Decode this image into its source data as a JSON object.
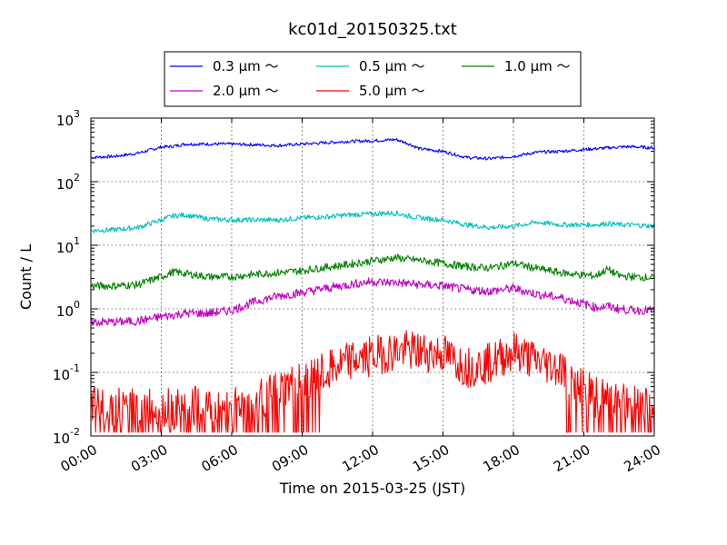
{
  "chart_data": {
    "type": "line",
    "title": "kc01d_20150325.txt",
    "xlabel": "Time on 2015-03-25 (JST)",
    "ylabel": "Count / L",
    "yscale": "log",
    "ylim": [
      0.01,
      1000
    ],
    "xlim": [
      "00:00",
      "24:00"
    ],
    "x_unit": "hour",
    "x": [
      0,
      1,
      2,
      3,
      3.5,
      4,
      5,
      6,
      7,
      8,
      9,
      10,
      11,
      12,
      12.5,
      13,
      13.5,
      14,
      15,
      16,
      17,
      18,
      19,
      20,
      21,
      21.5,
      22,
      22.5,
      23,
      24
    ],
    "x_tick_labels": [
      "00:00",
      "03:00",
      "06:00",
      "09:00",
      "12:00",
      "15:00",
      "18:00",
      "21:00",
      "24:00"
    ],
    "y_tick_labels": [
      {
        "base": "10",
        "exp": "-2"
      },
      {
        "base": "10",
        "exp": "-1"
      },
      {
        "base": "10",
        "exp": "0"
      },
      {
        "base": "10",
        "exp": "1"
      },
      {
        "base": "10",
        "exp": "2"
      },
      {
        "base": "10",
        "exp": "3"
      }
    ],
    "grid": true,
    "legend_position": "top-center",
    "series": [
      {
        "name": "0.3 μm ～",
        "color": "#0000ff",
        "values": [
          240,
          250,
          280,
          350,
          360,
          390,
          390,
          390,
          380,
          370,
          390,
          410,
          430,
          440,
          450,
          460,
          400,
          330,
          300,
          240,
          230,
          250,
          290,
          300,
          320,
          330,
          340,
          350,
          355,
          340
        ]
      },
      {
        "name": "0.5 μm ～",
        "color": "#00bfbf",
        "values": [
          17,
          17.5,
          19,
          25,
          29,
          30,
          26,
          25,
          25,
          25,
          27,
          28,
          30,
          31,
          32,
          32,
          29,
          27,
          25,
          21,
          19,
          20,
          23,
          21,
          21,
          21,
          22,
          21,
          21,
          20
        ]
      },
      {
        "name": "1.0 μm ～",
        "color": "#008000",
        "values": [
          2.3,
          2.3,
          2.4,
          3.2,
          3.8,
          3.6,
          3.2,
          3.2,
          3.5,
          3.7,
          4.0,
          4.5,
          5.0,
          5.7,
          6.0,
          6.4,
          6.0,
          5.8,
          5.2,
          4.6,
          4.4,
          5.2,
          4.3,
          3.7,
          3.4,
          3.3,
          4.2,
          3.3,
          3.2,
          3.1
        ]
      },
      {
        "name": "2.0 μm ～",
        "color": "#bf00bf",
        "values": [
          0.62,
          0.62,
          0.64,
          0.75,
          0.8,
          0.85,
          0.85,
          0.95,
          1.3,
          1.6,
          1.8,
          2.1,
          2.4,
          2.7,
          2.6,
          2.6,
          2.5,
          2.4,
          2.3,
          2.0,
          1.9,
          2.1,
          1.7,
          1.5,
          1.2,
          1.05,
          1.1,
          1.0,
          0.95,
          0.95
        ]
      },
      {
        "name": "5.0 μm ～",
        "color": "#ff0000",
        "values": [
          0.028,
          0.03,
          0.028,
          0.03,
          0.025,
          0.03,
          0.028,
          0.03,
          0.035,
          0.05,
          0.07,
          0.1,
          0.15,
          0.18,
          0.2,
          0.22,
          0.22,
          0.21,
          0.2,
          0.12,
          0.14,
          0.22,
          0.15,
          0.12,
          0.06,
          0.04,
          0.05,
          0.04,
          0.035,
          0.035
        ]
      }
    ]
  }
}
